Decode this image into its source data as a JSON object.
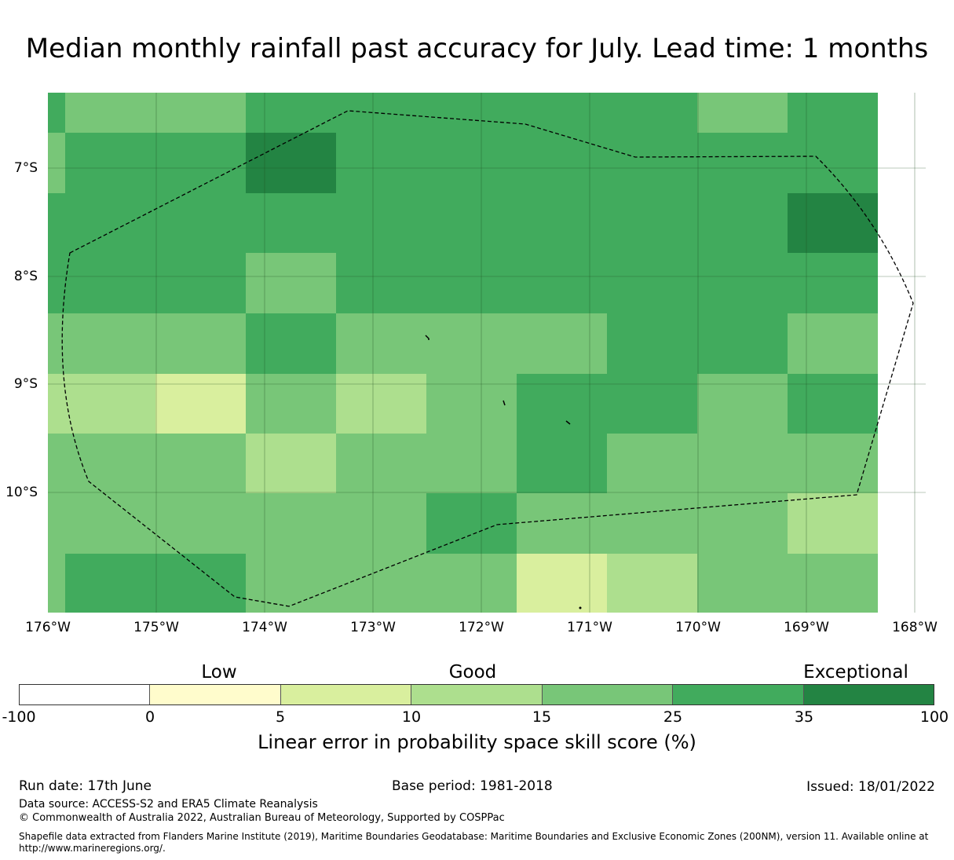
{
  "title": "Median monthly rainfall past accuracy for July. Lead time: 1 months",
  "map": {
    "lat_labels": [
      "7°S",
      "8°S",
      "9°S",
      "10°S"
    ],
    "lon_labels": [
      "176°W",
      "175°W",
      "174°W",
      "173°W",
      "172°W",
      "171°W",
      "170°W",
      "169°W",
      "168°W"
    ],
    "grid_colors": [
      "#ffffff",
      "#fffccc",
      "#d9ef9e",
      "#addf8e",
      "#78c678",
      "#41ab5d",
      "#238443"
    ],
    "cells": [
      [
        5,
        4,
        4,
        5,
        5,
        5,
        5,
        5,
        4,
        5
      ],
      [
        4,
        5,
        5,
        6,
        5,
        5,
        5,
        5,
        5,
        5
      ],
      [
        5,
        5,
        5,
        5,
        5,
        5,
        5,
        5,
        5,
        6
      ],
      [
        5,
        5,
        5,
        4,
        5,
        5,
        5,
        5,
        5,
        5
      ],
      [
        4,
        4,
        4,
        5,
        4,
        4,
        4,
        5,
        5,
        4
      ],
      [
        3,
        3,
        2,
        4,
        3,
        4,
        5,
        5,
        4,
        5
      ],
      [
        4,
        4,
        4,
        3,
        4,
        4,
        5,
        4,
        4,
        4
      ],
      [
        4,
        4,
        4,
        4,
        4,
        5,
        4,
        4,
        4,
        3
      ],
      [
        4,
        5,
        5,
        4,
        4,
        4,
        2,
        3,
        4,
        4
      ]
    ],
    "boundary_color": "#000000",
    "gridline_color": "#1f4d1f"
  },
  "colorbar": {
    "categories": [
      "Low",
      "Good",
      "Exceptional"
    ],
    "segment_colors": [
      "#ffffff",
      "#fffccc",
      "#d9ef9e",
      "#addf8e",
      "#78c678",
      "#41ab5d",
      "#238443"
    ],
    "ticks": [
      "-100",
      "0",
      "5",
      "10",
      "15",
      "25",
      "35",
      "100"
    ],
    "label": "Linear error in probability space skill score (%)"
  },
  "footer": {
    "run_date": "Run date: 17th June",
    "base_period": "Base period: 1981-2018",
    "issued": "Issued: 18/01/2022",
    "data_source": "Data source: ACCESS-S2 and ERA5 Climate Reanalysis",
    "copyright": "© Commonwealth of Australia 2022, Australian Bureau of Meteorology, Supported by COSPPac",
    "shapefile_line1": "Shapefile data extracted from Flanders Marine Institute (2019), Maritime Boundaries Geodatabase: Maritime Boundaries and Exclusive Economic Zones (200NM), version 11. Available online at",
    "shapefile_line2": "http://www.marineregions.org/."
  }
}
